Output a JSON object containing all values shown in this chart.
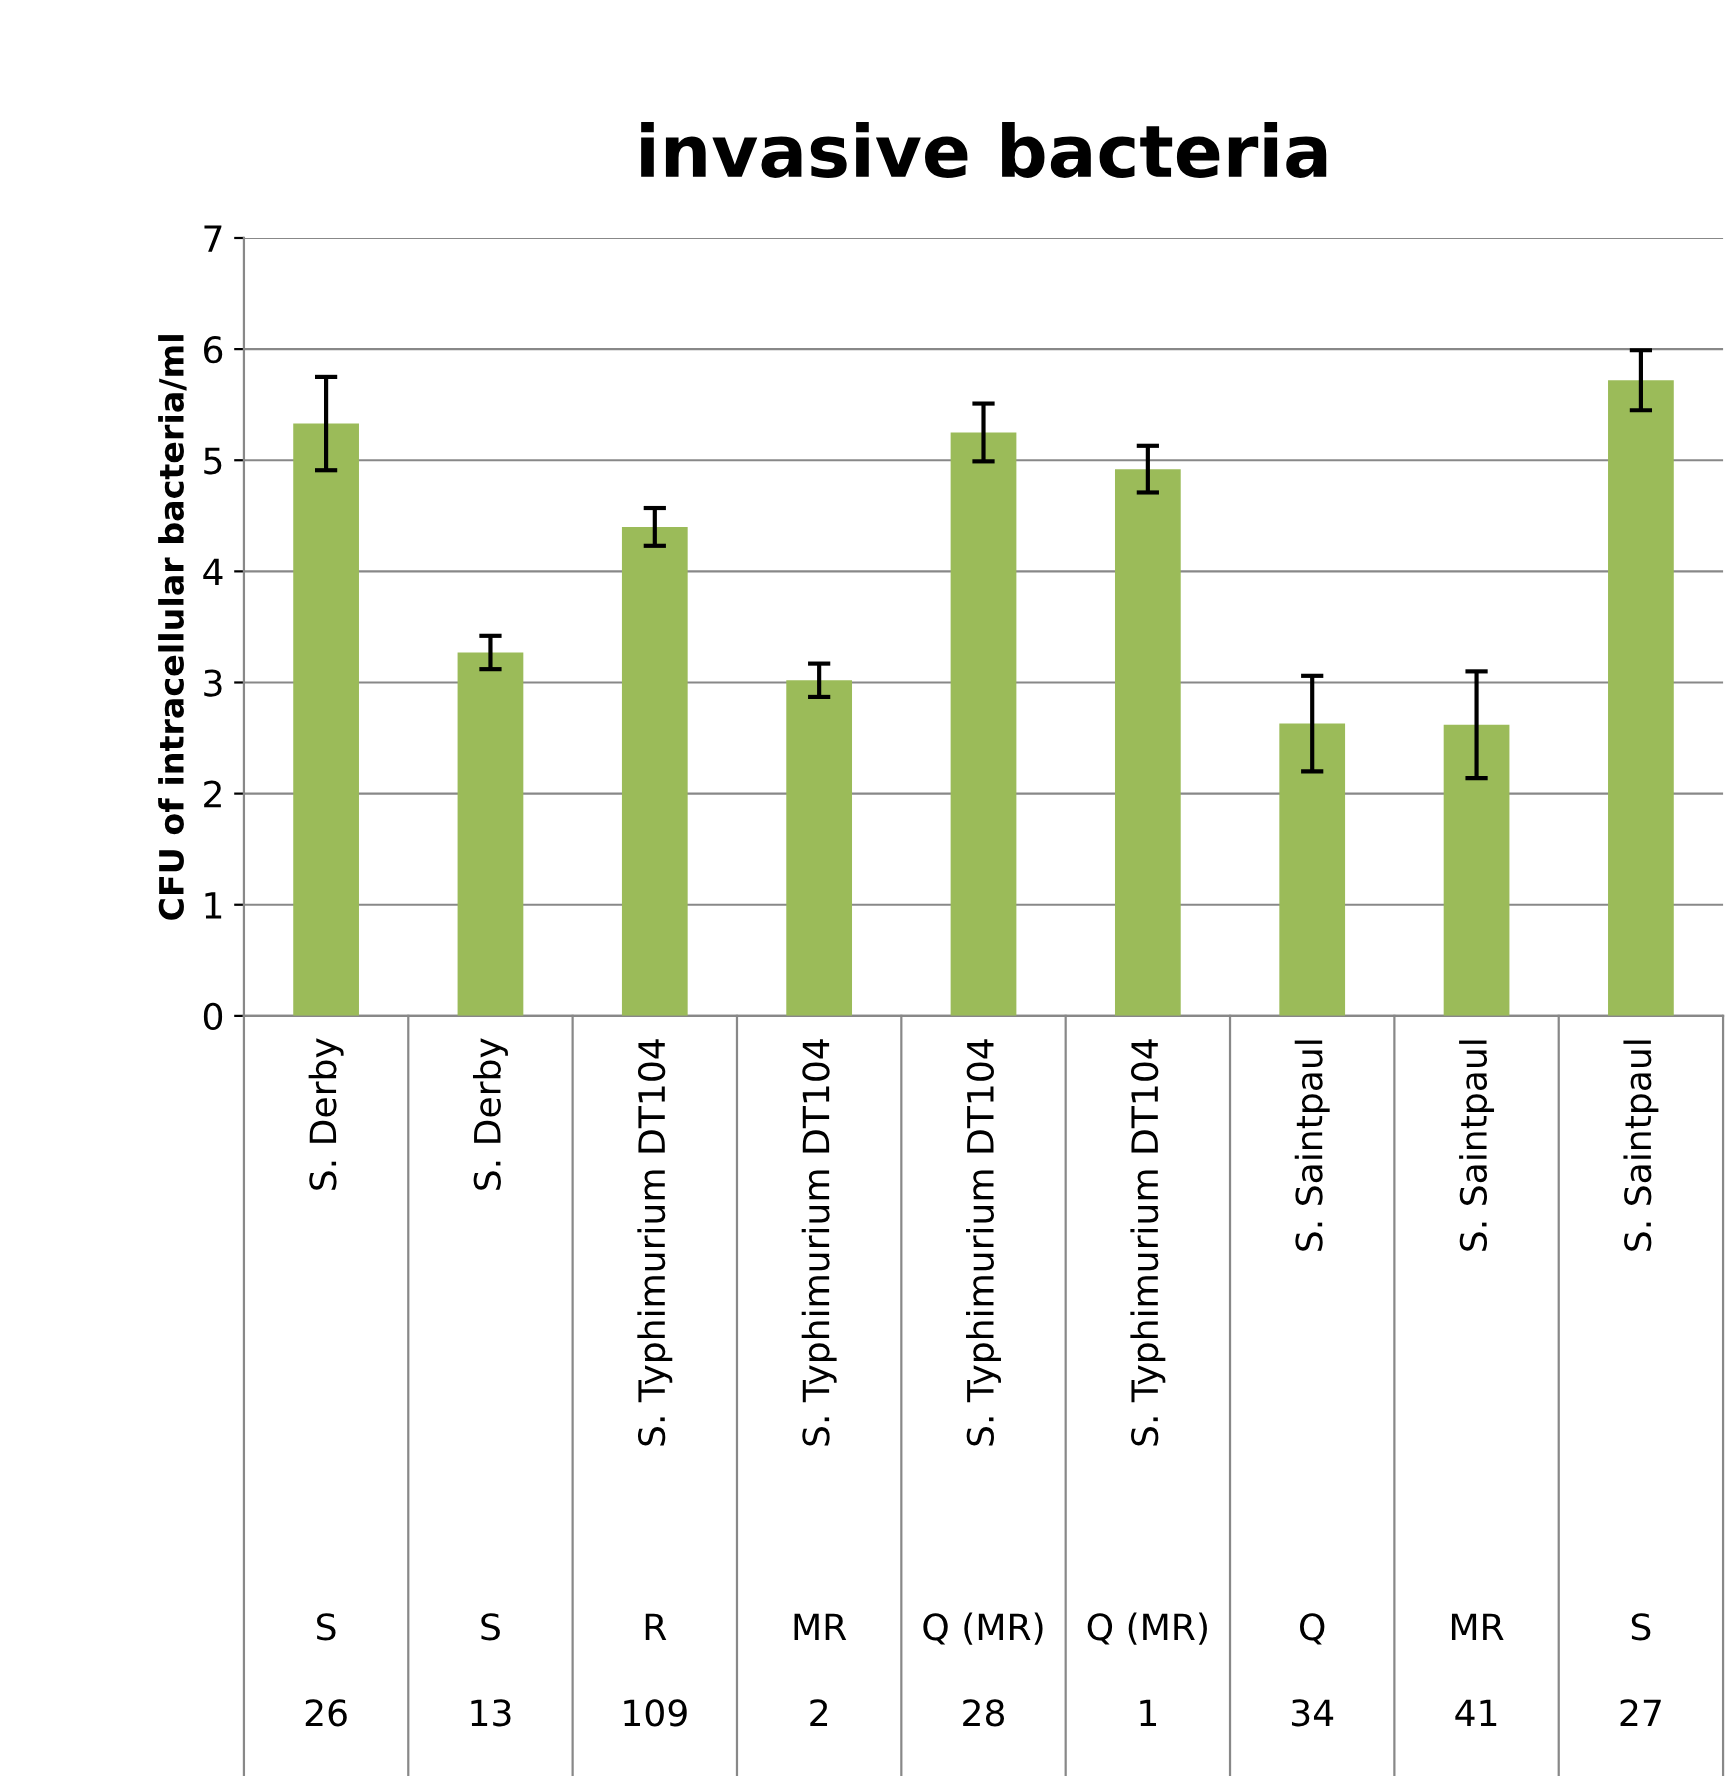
{
  "chart_data": {
    "type": "bar",
    "title": "invasive bacteria",
    "ylabel": "CFU of intracellular bacteria/ml",
    "categories": [
      "S. Derby",
      "S. Derby",
      "S. Typhimurium DT104",
      "S. Typhimurium DT104",
      "S. Typhimurium DT104",
      "S. Typhimurium DT104",
      "S. Saintpaul",
      "S. Saintpaul",
      "S. Saintpaul"
    ],
    "values": [
      5.33,
      3.27,
      4.4,
      3.02,
      5.25,
      4.92,
      2.63,
      2.62,
      5.72
    ],
    "errors": [
      0.42,
      0.15,
      0.17,
      0.15,
      0.26,
      0.21,
      0.43,
      0.48,
      0.27
    ],
    "color": "#9bbb59",
    "annotations": [
      "S",
      "S",
      "R",
      "MR",
      "Q (MR)",
      "Q (MR)",
      "Q",
      "MR",
      "S",
      "26",
      "13",
      "109",
      "2",
      "28",
      "1",
      "34",
      "41",
      "27"
    ],
    "ylim": [
      0,
      7
    ],
    "yticks": [
      0,
      1,
      2,
      3,
      4,
      5,
      6,
      7
    ],
    "grid": "y",
    "legend": false
  }
}
